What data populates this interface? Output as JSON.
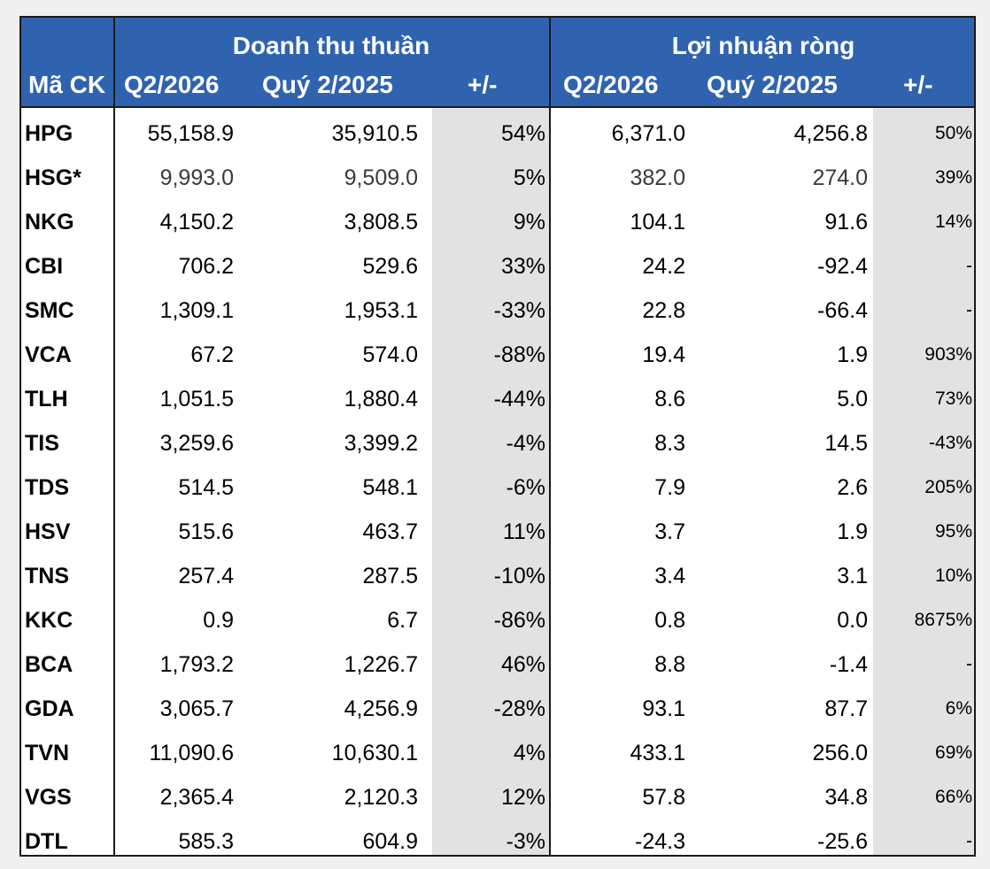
{
  "table": {
    "group_revenue": "Doanh thu thuần",
    "group_profit": "Lợi nhuận ròng",
    "col_code": "Mã CK",
    "col_rev_cur": "Q2/2026",
    "col_rev_prev": "Quý 2/2025",
    "col_rev_chg": "+/-",
    "col_np_cur": "Q2/2026",
    "col_np_prev": "Quý 2/2025",
    "col_np_chg": "+/-",
    "header_color": "#2f63b0",
    "rows": [
      {
        "code": "HPG",
        "rev_cur": "55,158.9",
        "rev_prev": "35,910.5",
        "rev_chg": "54%",
        "np_cur": "6,371.0",
        "np_prev": "4,256.8",
        "np_chg": "50%"
      },
      {
        "code": "HSG*",
        "rev_cur": "9,993.0",
        "rev_prev": "9,509.0",
        "rev_chg": "5%",
        "np_cur": "382.0",
        "np_prev": "274.0",
        "np_chg": "39%"
      },
      {
        "code": "NKG",
        "rev_cur": "4,150.2",
        "rev_prev": "3,808.5",
        "rev_chg": "9%",
        "np_cur": "104.1",
        "np_prev": "91.6",
        "np_chg": "14%"
      },
      {
        "code": "CBI",
        "rev_cur": "706.2",
        "rev_prev": "529.6",
        "rev_chg": "33%",
        "np_cur": "24.2",
        "np_prev": "-92.4",
        "np_chg": "-"
      },
      {
        "code": "SMC",
        "rev_cur": "1,309.1",
        "rev_prev": "1,953.1",
        "rev_chg": "-33%",
        "np_cur": "22.8",
        "np_prev": "-66.4",
        "np_chg": "-"
      },
      {
        "code": "VCA",
        "rev_cur": "67.2",
        "rev_prev": "574.0",
        "rev_chg": "-88%",
        "np_cur": "19.4",
        "np_prev": "1.9",
        "np_chg": "903%"
      },
      {
        "code": "TLH",
        "rev_cur": "1,051.5",
        "rev_prev": "1,880.4",
        "rev_chg": "-44%",
        "np_cur": "8.6",
        "np_prev": "5.0",
        "np_chg": "73%"
      },
      {
        "code": "TIS",
        "rev_cur": "3,259.6",
        "rev_prev": "3,399.2",
        "rev_chg": "-4%",
        "np_cur": "8.3",
        "np_prev": "14.5",
        "np_chg": "-43%"
      },
      {
        "code": "TDS",
        "rev_cur": "514.5",
        "rev_prev": "548.1",
        "rev_chg": "-6%",
        "np_cur": "7.9",
        "np_prev": "2.6",
        "np_chg": "205%"
      },
      {
        "code": "HSV",
        "rev_cur": "515.6",
        "rev_prev": "463.7",
        "rev_chg": "11%",
        "np_cur": "3.7",
        "np_prev": "1.9",
        "np_chg": "95%"
      },
      {
        "code": "TNS",
        "rev_cur": "257.4",
        "rev_prev": "287.5",
        "rev_chg": "-10%",
        "np_cur": "3.4",
        "np_prev": "3.1",
        "np_chg": "10%"
      },
      {
        "code": "KKC",
        "rev_cur": "0.9",
        "rev_prev": "6.7",
        "rev_chg": "-86%",
        "np_cur": "0.8",
        "np_prev": "0.0",
        "np_chg": "8675%"
      },
      {
        "code": "BCA",
        "rev_cur": "1,793.2",
        "rev_prev": "1,226.7",
        "rev_chg": "46%",
        "np_cur": "8.8",
        "np_prev": "-1.4",
        "np_chg": "-"
      },
      {
        "code": "GDA",
        "rev_cur": "3,065.7",
        "rev_prev": "4,256.9",
        "rev_chg": "-28%",
        "np_cur": "93.1",
        "np_prev": "87.7",
        "np_chg": "6%"
      },
      {
        "code": "TVN",
        "rev_cur": "11,090.6",
        "rev_prev": "10,630.1",
        "rev_chg": "4%",
        "np_cur": "433.1",
        "np_prev": "256.0",
        "np_chg": "69%"
      },
      {
        "code": "VGS",
        "rev_cur": "2,365.4",
        "rev_prev": "2,120.3",
        "rev_chg": "12%",
        "np_cur": "57.8",
        "np_prev": "34.8",
        "np_chg": "66%"
      },
      {
        "code": "DTL",
        "rev_cur": "585.3",
        "rev_prev": "604.9",
        "rev_chg": "-3%",
        "np_cur": "-24.3",
        "np_prev": "-25.6",
        "np_chg": "-"
      }
    ]
  }
}
